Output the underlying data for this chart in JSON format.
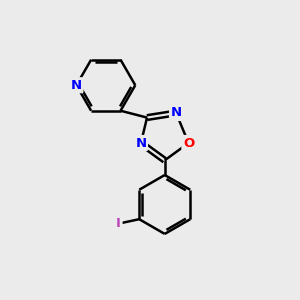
{
  "background_color": "#ebebeb",
  "bond_color": "#000000",
  "bond_width": 1.8,
  "atom_colors": {
    "N": "#0000ff",
    "O": "#ff0000",
    "I": "#bb44bb",
    "C": "#000000"
  },
  "font_size": 9.5,
  "figsize": [
    3.0,
    3.0
  ],
  "dpi": 100
}
